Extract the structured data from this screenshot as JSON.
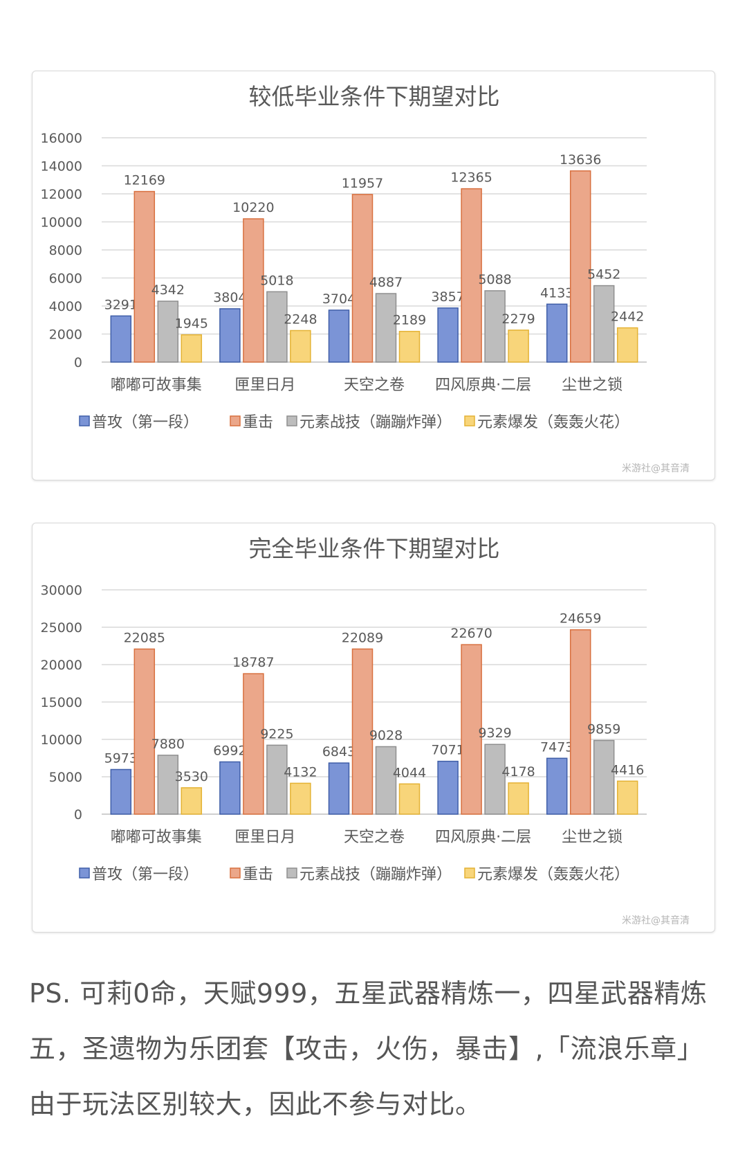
{
  "colors": {
    "series": [
      "#7b94d6",
      "#eba78a",
      "#bdbdbd",
      "#f8d57a"
    ],
    "series_stroke": [
      "#3f5ea8",
      "#d8703f",
      "#8f8f8f",
      "#e4b234"
    ],
    "grid": "#d9d9d9",
    "text": "#595959"
  },
  "watermark": "米游社@其音清",
  "chart_data": [
    {
      "type": "bar",
      "title": "较低毕业条件下期望对比",
      "categories": [
        "嘟嘟可故事集",
        "匣里日月",
        "天空之卷",
        "四风原典·二层",
        "尘世之锁"
      ],
      "ylim": [
        0,
        16000
      ],
      "yticks": [
        "0",
        "2000",
        "4000",
        "6000",
        "8000",
        "10000",
        "12000",
        "14000",
        "16000"
      ],
      "grid": true,
      "legend_position": "bottom",
      "series": [
        {
          "name": "普攻（第一段）",
          "values": [
            3291,
            3804,
            3704,
            3857,
            4133
          ]
        },
        {
          "name": "重击",
          "values": [
            12169,
            10220,
            11957,
            12365,
            13636
          ]
        },
        {
          "name": "元素战技（蹦蹦炸弹）",
          "values": [
            4342,
            5018,
            4887,
            5088,
            5452
          ]
        },
        {
          "name": "元素爆发（轰轰火花）",
          "values": [
            1945,
            2248,
            2189,
            2279,
            2442
          ]
        }
      ]
    },
    {
      "type": "bar",
      "title": "完全毕业条件下期望对比",
      "categories": [
        "嘟嘟可故事集",
        "匣里日月",
        "天空之卷",
        "四风原典·二层",
        "尘世之锁"
      ],
      "ylim": [
        0,
        30000
      ],
      "yticks": [
        "0",
        "5000",
        "10000",
        "15000",
        "20000",
        "25000",
        "30000"
      ],
      "grid": true,
      "legend_position": "bottom",
      "series": [
        {
          "name": "普攻（第一段）",
          "values": [
            5973,
            6992,
            6843,
            7071,
            7473
          ]
        },
        {
          "name": "重击",
          "values": [
            22085,
            18787,
            22089,
            22670,
            24659
          ]
        },
        {
          "name": "元素战技（蹦蹦炸弹）",
          "values": [
            7880,
            9225,
            9028,
            9329,
            9859
          ]
        },
        {
          "name": "元素爆发（轰轰火花）",
          "values": [
            3530,
            4132,
            4044,
            4178,
            4416
          ]
        }
      ]
    }
  ],
  "caption": "PS. 可莉0命，天赋999，五星武器精炼一，四星武器精炼五，圣遗物为乐团套【攻击，火伤，暴击】,「流浪乐章」由于玩法区别较大，因此不参与对比。"
}
